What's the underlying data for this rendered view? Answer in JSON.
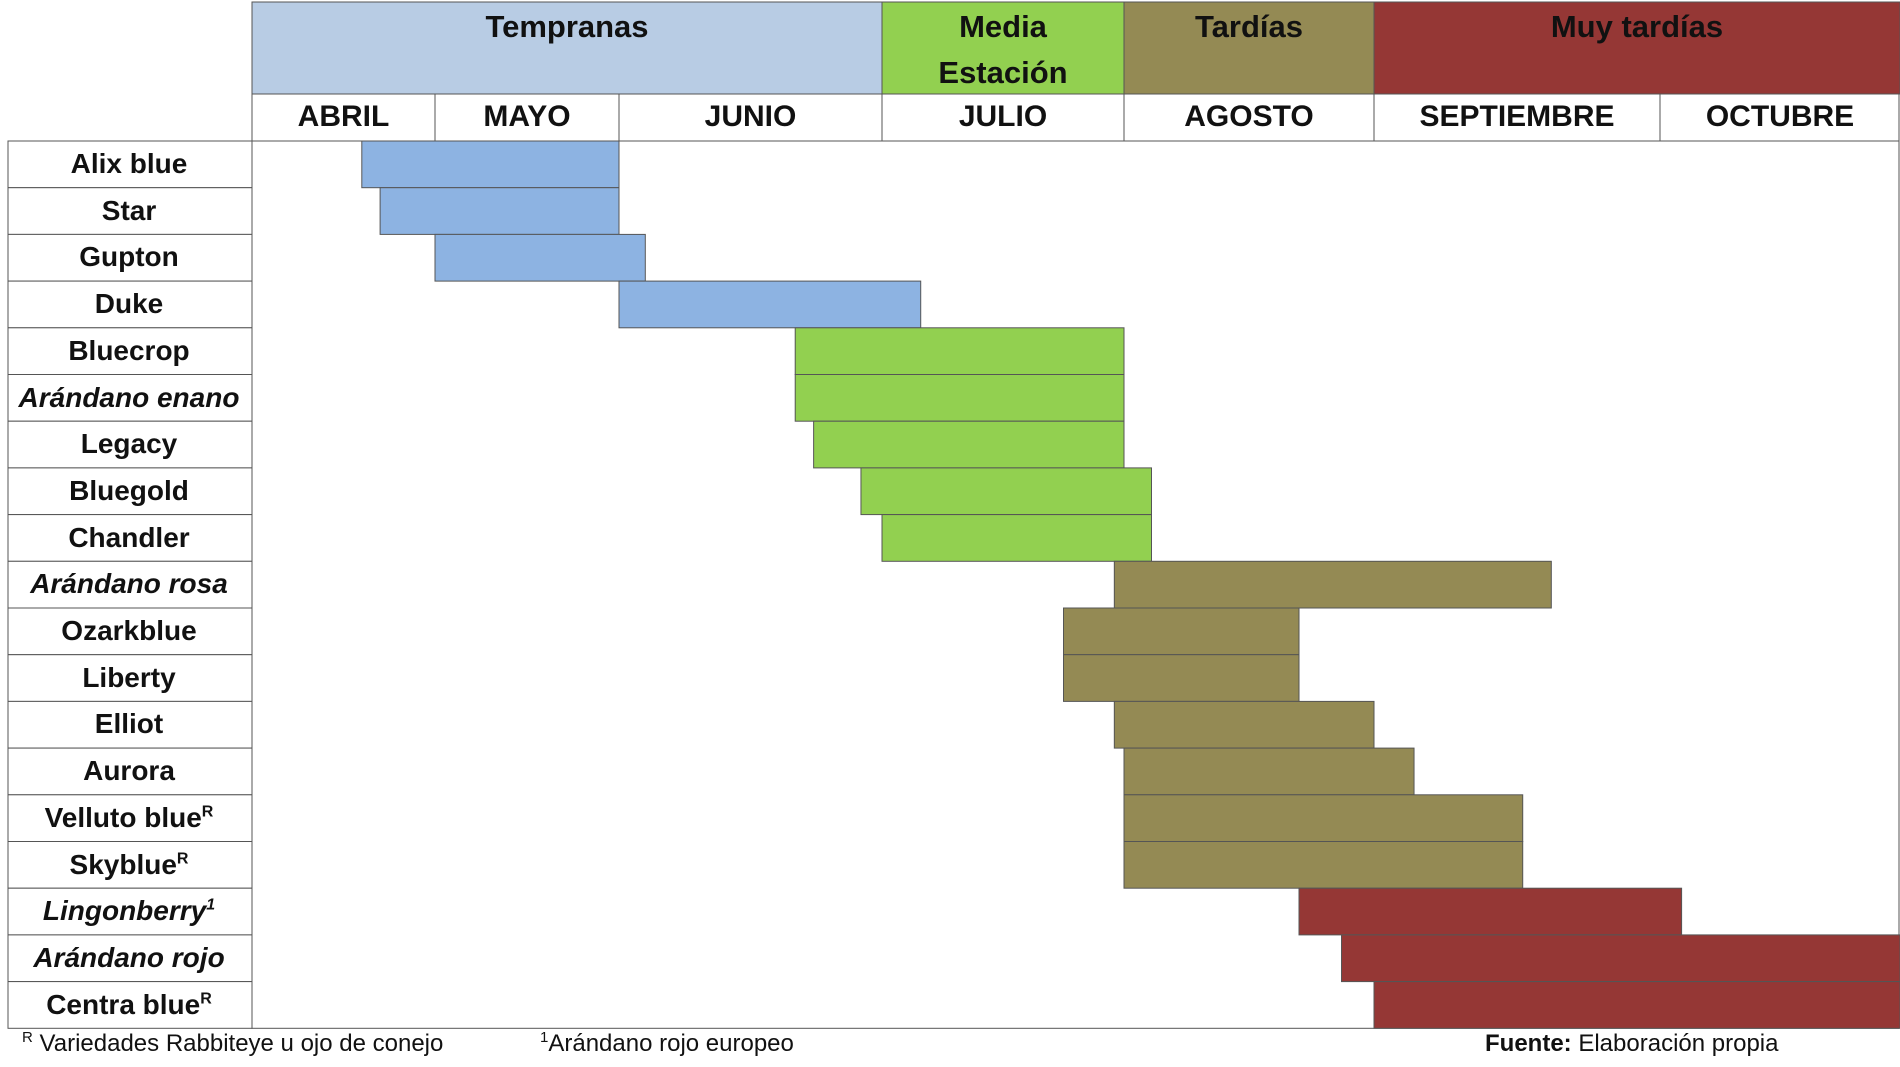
{
  "chart_data": {
    "type": "gantt",
    "seasons": [
      {
        "label": "Tempranas",
        "color": "#b8cce4"
      },
      {
        "label": "Media Estación",
        "color": "#92d050"
      },
      {
        "label": "Tardías",
        "color": "#948a54"
      },
      {
        "label": "Muy tardías",
        "color": "#953735"
      }
    ],
    "bar_colors": {
      "Tempranas": "#8db3e2",
      "Media Estación": "#92d050",
      "Tardías": "#948a54",
      "Muy tardías": "#953735"
    },
    "months": [
      "ABRIL",
      "MAYO",
      "JUNIO",
      "JULIO",
      "AGOSTO",
      "SEPTIEMBRE",
      "OCTUBRE"
    ],
    "varieties": [
      {
        "name": "Alix blue",
        "sup": "",
        "italic": false,
        "season": "Tempranas",
        "start": "ABRIL",
        "start_frac": 0.6,
        "end": "MAYO",
        "end_frac": 1.0
      },
      {
        "name": "Star",
        "sup": "",
        "italic": false,
        "season": "Tempranas",
        "start": "ABRIL",
        "start_frac": 0.7,
        "end": "MAYO",
        "end_frac": 1.0
      },
      {
        "name": "Gupton",
        "sup": "",
        "italic": false,
        "season": "Tempranas",
        "start": "MAYO",
        "start_frac": 0.0,
        "end": "JUNIO",
        "end_frac": 0.1
      },
      {
        "name": "Duke",
        "sup": "",
        "italic": false,
        "season": "Tempranas",
        "start": "JUNIO",
        "start_frac": 0.0,
        "end": "JULIO",
        "end_frac": 0.16
      },
      {
        "name": "Bluecrop",
        "sup": "",
        "italic": false,
        "season": "Media Estación",
        "start": "JUNIO",
        "start_frac": 0.67,
        "end": "JULIO",
        "end_frac": 1.0
      },
      {
        "name": "Arándano enano",
        "sup": "",
        "italic": true,
        "season": "Media Estación",
        "start": "JUNIO",
        "start_frac": 0.67,
        "end": "JULIO",
        "end_frac": 1.0
      },
      {
        "name": "Legacy",
        "sup": "",
        "italic": false,
        "season": "Media Estación",
        "start": "JUNIO",
        "start_frac": 0.74,
        "end": "JULIO",
        "end_frac": 1.0
      },
      {
        "name": "Bluegold",
        "sup": "",
        "italic": false,
        "season": "Media Estación",
        "start": "JUNIO",
        "start_frac": 0.92,
        "end": "AGOSTO",
        "end_frac": 0.11
      },
      {
        "name": "Chandler",
        "sup": "",
        "italic": false,
        "season": "Media Estación",
        "start": "JULIO",
        "start_frac": 0.0,
        "end": "AGOSTO",
        "end_frac": 0.11
      },
      {
        "name": "Arándano rosa",
        "sup": "",
        "italic": true,
        "season": "Tardías",
        "start": "JULIO",
        "start_frac": 0.96,
        "end": "SEPTIEMBRE",
        "end_frac": 0.62
      },
      {
        "name": "Ozarkblue",
        "sup": "",
        "italic": false,
        "season": "Tardías",
        "start": "JULIO",
        "start_frac": 0.75,
        "end": "AGOSTO",
        "end_frac": 0.7
      },
      {
        "name": "Liberty",
        "sup": "",
        "italic": false,
        "season": "Tardías",
        "start": "JULIO",
        "start_frac": 0.75,
        "end": "AGOSTO",
        "end_frac": 0.7
      },
      {
        "name": "Elliot",
        "sup": "",
        "italic": false,
        "season": "Tardías",
        "start": "JULIO",
        "start_frac": 0.96,
        "end": "AGOSTO",
        "end_frac": 1.0
      },
      {
        "name": "Aurora",
        "sup": "",
        "italic": false,
        "season": "Tardías",
        "start": "AGOSTO",
        "start_frac": 0.0,
        "end": "SEPTIEMBRE",
        "end_frac": 0.14
      },
      {
        "name": "Velluto blue",
        "sup": "R",
        "italic": false,
        "season": "Tardías",
        "start": "AGOSTO",
        "start_frac": 0.0,
        "end": "SEPTIEMBRE",
        "end_frac": 0.52
      },
      {
        "name": "Skyblue",
        "sup": "R",
        "italic": false,
        "season": "Tardías",
        "start": "AGOSTO",
        "start_frac": 0.0,
        "end": "SEPTIEMBRE",
        "end_frac": 0.52
      },
      {
        "name": "Lingonberry",
        "sup": "1",
        "italic": true,
        "season": "Muy tardías",
        "start": "AGOSTO",
        "start_frac": 0.7,
        "end": "OCTUBRE",
        "end_frac": 0.09
      },
      {
        "name": "Arándano rojo",
        "sup": "",
        "italic": true,
        "season": "Muy tardías",
        "start": "AGOSTO",
        "start_frac": 0.87,
        "end": "OCTUBRE",
        "end_frac": 1.0
      },
      {
        "name": "Centra blue",
        "sup": "R",
        "italic": false,
        "season": "Muy tardías",
        "start": "SEPTIEMBRE",
        "start_frac": 0.0,
        "end": "OCTUBRE",
        "end_frac": 1.0
      }
    ]
  },
  "footnotes": {
    "rabbiteye_sup": "R",
    "rabbiteye_text": " Variedades Rabbiteye u ojo de conejo",
    "lingonberry_sup": "1",
    "lingonberry_text": "Arándano rojo europeo",
    "source_label": "Fuente:",
    "source_text": " Elaboración propia"
  }
}
